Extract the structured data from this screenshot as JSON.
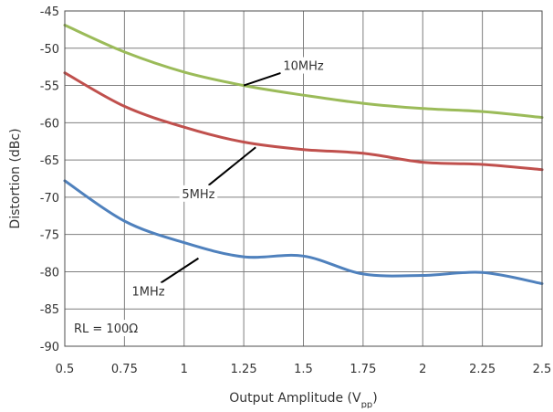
{
  "chart_data": {
    "type": "line",
    "title": "",
    "xlabel": "Output Amplitude (V",
    "xlabel_sub": "pp",
    "xlabel_end": ")",
    "ylabel": "Distortion (dBc)",
    "xlim": [
      0.5,
      2.5
    ],
    "ylim": [
      -90,
      -45
    ],
    "x_ticks": [
      0.5,
      0.75,
      1,
      1.25,
      1.5,
      1.75,
      2,
      2.25,
      2.5
    ],
    "x_tick_labels": [
      "0.5",
      "0.75",
      "1",
      "1.25",
      "1.5",
      "1.75",
      "2",
      "2.25",
      "2.5"
    ],
    "y_ticks": [
      -45,
      -50,
      -55,
      -60,
      -65,
      -70,
      -75,
      -80,
      -85,
      -90
    ],
    "y_tick_labels": [
      "-45",
      "-50",
      "-55",
      "-60",
      "-65",
      "-70",
      "-75",
      "-80",
      "-85",
      "-90"
    ],
    "grid": true,
    "annotation": "RL = 100Ω",
    "series": [
      {
        "name": "10MHz",
        "color": "#9bbb59",
        "x": [
          0.5,
          0.75,
          1,
          1.25,
          1.5,
          1.75,
          2,
          2.25,
          2.5
        ],
        "y": [
          -46.9,
          -50.5,
          -53.2,
          -55.0,
          -56.3,
          -57.4,
          -58.1,
          -58.5,
          -59.3
        ]
      },
      {
        "name": "5MHz",
        "color": "#c0504d",
        "x": [
          0.5,
          0.75,
          1,
          1.25,
          1.5,
          1.75,
          2,
          2.25,
          2.5
        ],
        "y": [
          -53.3,
          -57.8,
          -60.6,
          -62.6,
          -63.6,
          -64.1,
          -65.3,
          -65.6,
          -66.3
        ]
      },
      {
        "name": "1MHz",
        "color": "#4f81bd",
        "x": [
          0.5,
          0.75,
          1,
          1.25,
          1.5,
          1.75,
          2,
          2.25,
          2.5
        ],
        "y": [
          -67.8,
          -73.2,
          -76.1,
          -78.0,
          -77.9,
          -80.3,
          -80.5,
          -80.1,
          -81.6
        ]
      }
    ],
    "labels": [
      {
        "series": "10MHz",
        "text": "10MHz",
        "x": 1.5,
        "y": -52.3,
        "leader_to": [
          1.25,
          -55.0
        ]
      },
      {
        "series": "5MHz",
        "text": "5MHz",
        "x": 1.06,
        "y": -69.5,
        "leader_to": [
          1.3,
          -63.3
        ]
      },
      {
        "series": "1MHz",
        "text": "1MHz",
        "x": 0.85,
        "y": -82.6,
        "leader_to": [
          1.06,
          -78.2
        ]
      }
    ]
  }
}
